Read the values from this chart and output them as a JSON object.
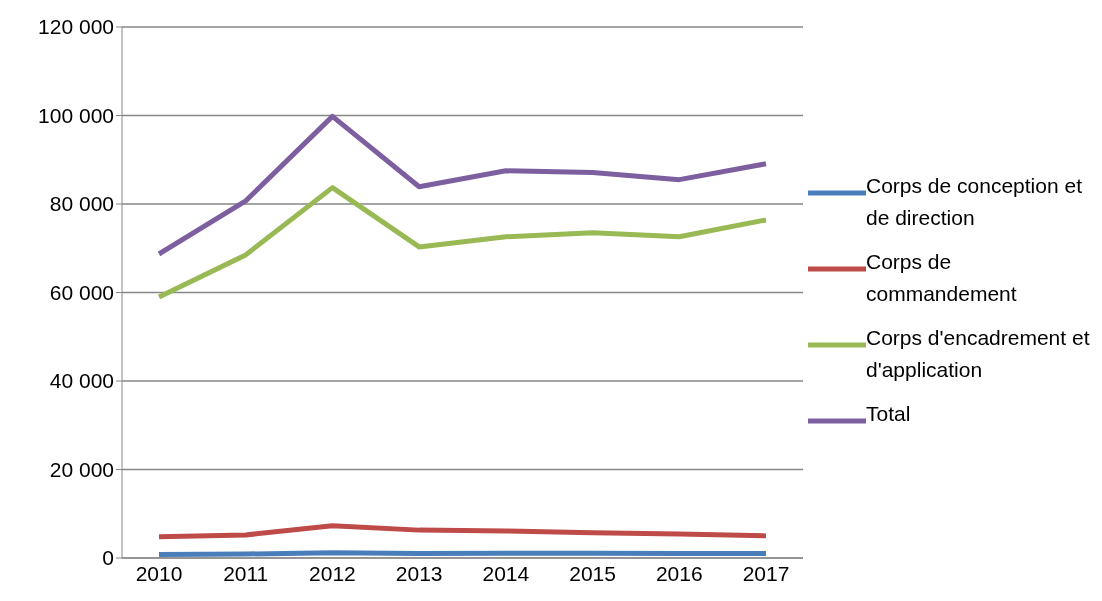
{
  "chart_data": {
    "type": "line",
    "categories": [
      "2010",
      "2011",
      "2012",
      "2013",
      "2014",
      "2015",
      "2016",
      "2017"
    ],
    "series": [
      {
        "name": "Corps de conception et de direction",
        "color": "#4a7ebb",
        "values": [
          800,
          900,
          1200,
          1000,
          1100,
          1100,
          1000,
          1000
        ]
      },
      {
        "name": "Corps de commandement",
        "color": "#be4b48",
        "values": [
          4800,
          5200,
          7300,
          6300,
          6100,
          5700,
          5400,
          5000
        ]
      },
      {
        "name": "Corps d'encadrement et d'application",
        "color": "#98b954",
        "values": [
          59000,
          68500,
          83700,
          70300,
          72600,
          73500,
          72600,
          76400
        ]
      },
      {
        "name": "Total",
        "color": "#7d5fa0",
        "values": [
          68700,
          80700,
          99800,
          83900,
          87500,
          87100,
          85500,
          89100
        ]
      }
    ],
    "ylim": [
      0,
      120000
    ],
    "yticks": [
      {
        "value": 0,
        "label": "0"
      },
      {
        "value": 20000,
        "label": "20 000"
      },
      {
        "value": 40000,
        "label": "40 000"
      },
      {
        "value": 60000,
        "label": "60 000"
      },
      {
        "value": 80000,
        "label": "80 000"
      },
      {
        "value": 100000,
        "label": "100 000"
      },
      {
        "value": 120000,
        "label": "120 000"
      }
    ],
    "grid": "y",
    "legend": "right",
    "marker": "none",
    "line_style": "solid"
  }
}
